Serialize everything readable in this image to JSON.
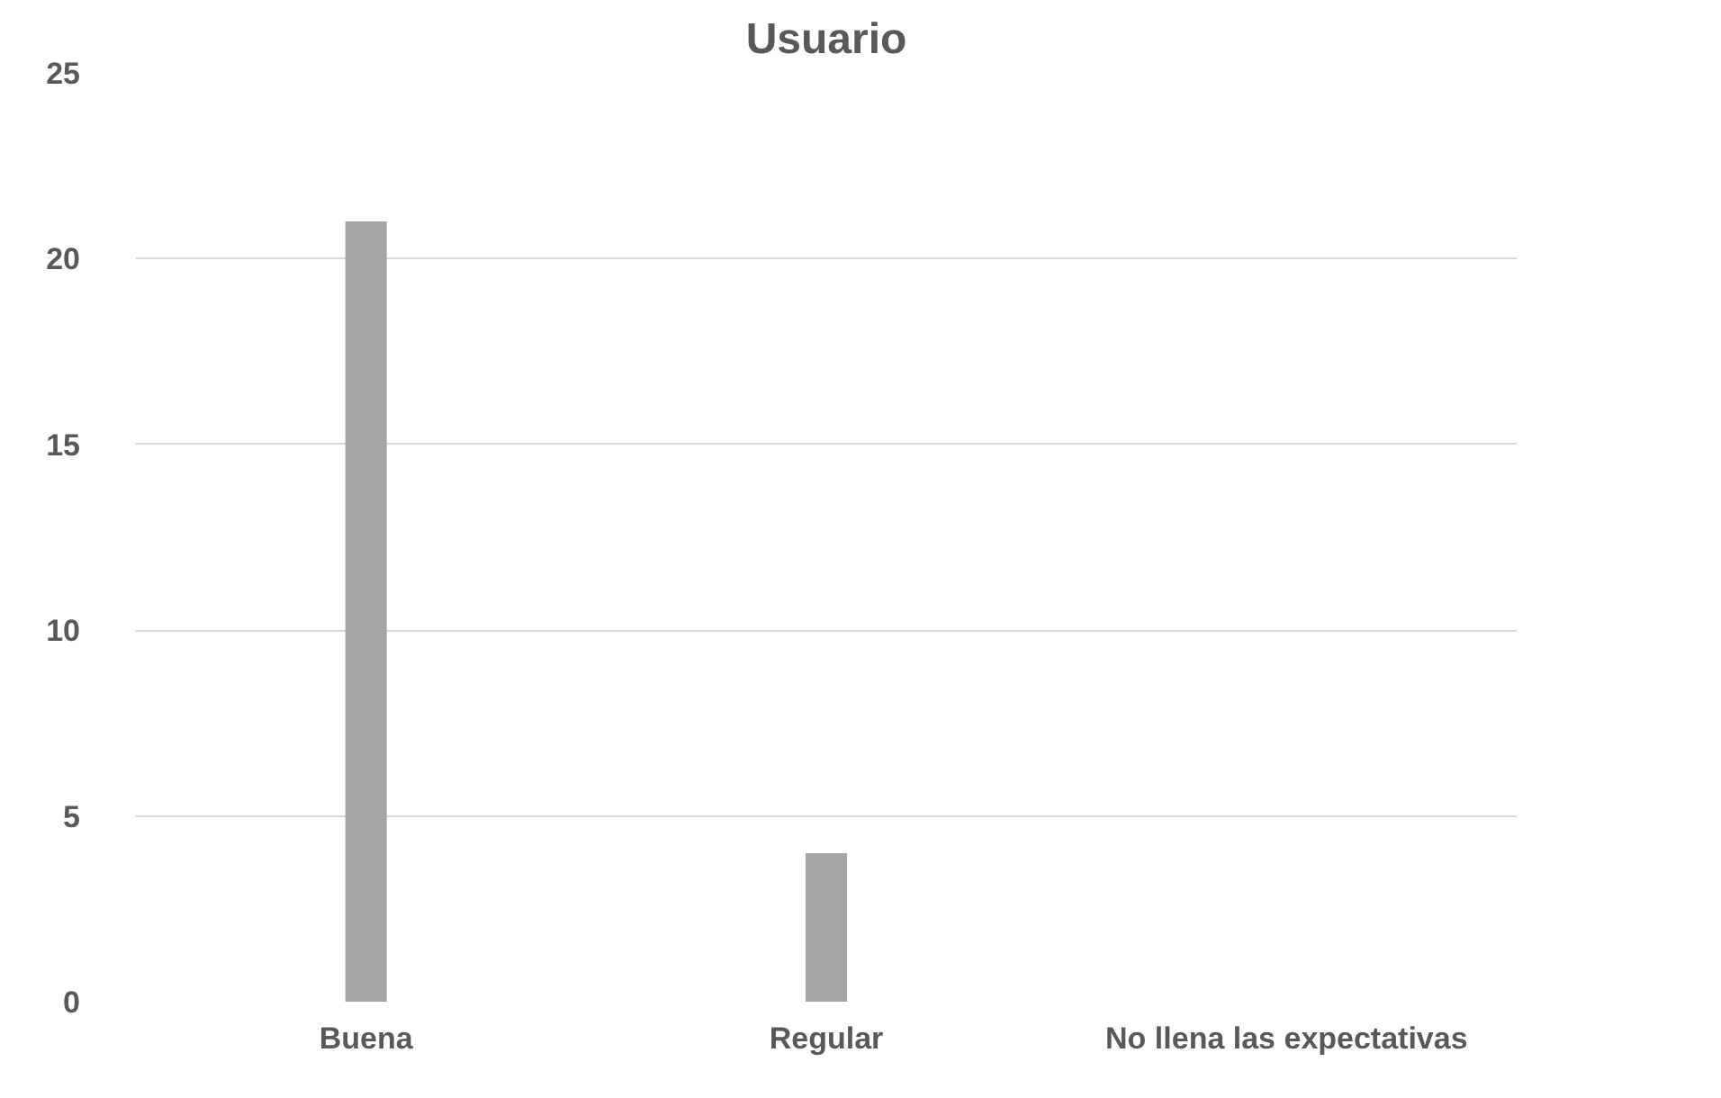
{
  "chart_data": {
    "type": "bar",
    "title": "Usuario",
    "categories": [
      "Buena",
      "Regular",
      "No llena las expectativas"
    ],
    "values": [
      21,
      4,
      0
    ],
    "color": "#a5a5a5",
    "ylim": [
      0,
      25
    ],
    "yticks": [
      0,
      5,
      10,
      15,
      20,
      25
    ],
    "grid": "y"
  }
}
